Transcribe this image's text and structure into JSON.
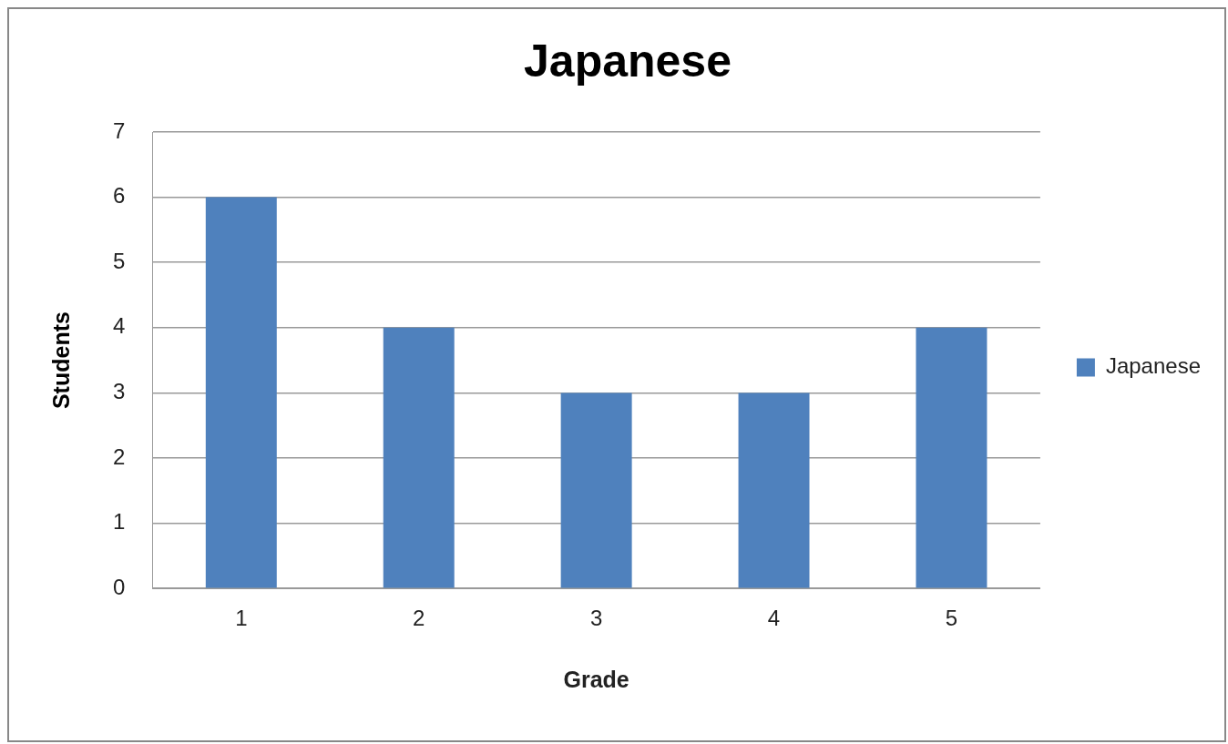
{
  "chart_data": {
    "type": "bar",
    "title": "Japanese",
    "xlabel": "Grade",
    "ylabel": "Students",
    "categories": [
      "1",
      "2",
      "3",
      "4",
      "5"
    ],
    "series": [
      {
        "name": "Japanese",
        "color": "#4f81bd",
        "values": [
          6,
          4,
          3,
          3,
          4
        ]
      }
    ],
    "ylim": [
      0,
      7
    ],
    "yticks": [
      0,
      1,
      2,
      3,
      4,
      5,
      6,
      7
    ],
    "grid": "y",
    "legend": "right"
  }
}
